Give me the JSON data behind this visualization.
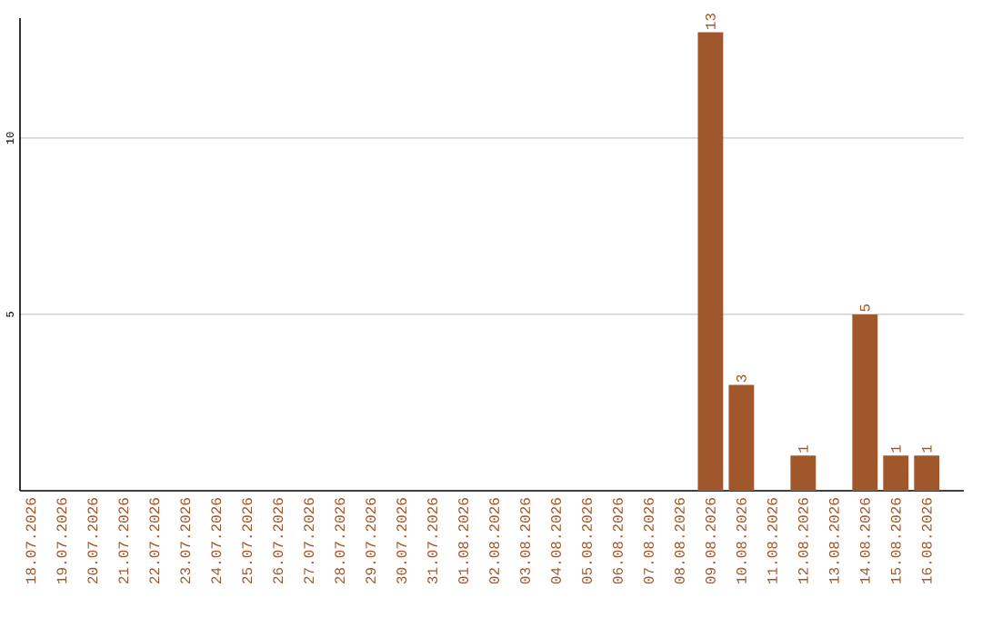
{
  "chart_data": {
    "type": "bar",
    "categories": [
      "18.07.2026",
      "19.07.2026",
      "20.07.2026",
      "21.07.2026",
      "22.07.2026",
      "23.07.2026",
      "24.07.2026",
      "25.07.2026",
      "26.07.2026",
      "27.07.2026",
      "28.07.2026",
      "29.07.2026",
      "30.07.2026",
      "31.07.2026",
      "01.08.2026",
      "02.08.2026",
      "03.08.2026",
      "04.08.2026",
      "05.08.2026",
      "06.08.2026",
      "07.08.2026",
      "08.08.2026",
      "09.08.2026",
      "10.08.2026",
      "11.08.2026",
      "12.08.2026",
      "13.08.2026",
      "14.08.2026",
      "15.08.2026",
      "16.08.2026"
    ],
    "values": [
      0,
      0,
      0,
      0,
      0,
      0,
      0,
      0,
      0,
      0,
      0,
      0,
      0,
      0,
      0,
      0,
      0,
      0,
      0,
      0,
      0,
      0,
      13,
      3,
      0,
      1,
      0,
      5,
      1,
      1
    ],
    "value_labels": [
      null,
      null,
      null,
      null,
      null,
      null,
      null,
      null,
      null,
      null,
      null,
      null,
      null,
      null,
      null,
      null,
      null,
      null,
      null,
      null,
      null,
      null,
      "13",
      "3",
      null,
      "1",
      null,
      "5",
      "1",
      "1"
    ],
    "color": "#a0572b",
    "ylim": [
      0,
      13.4
    ],
    "yticks": [
      5,
      10
    ],
    "grid": "y"
  }
}
